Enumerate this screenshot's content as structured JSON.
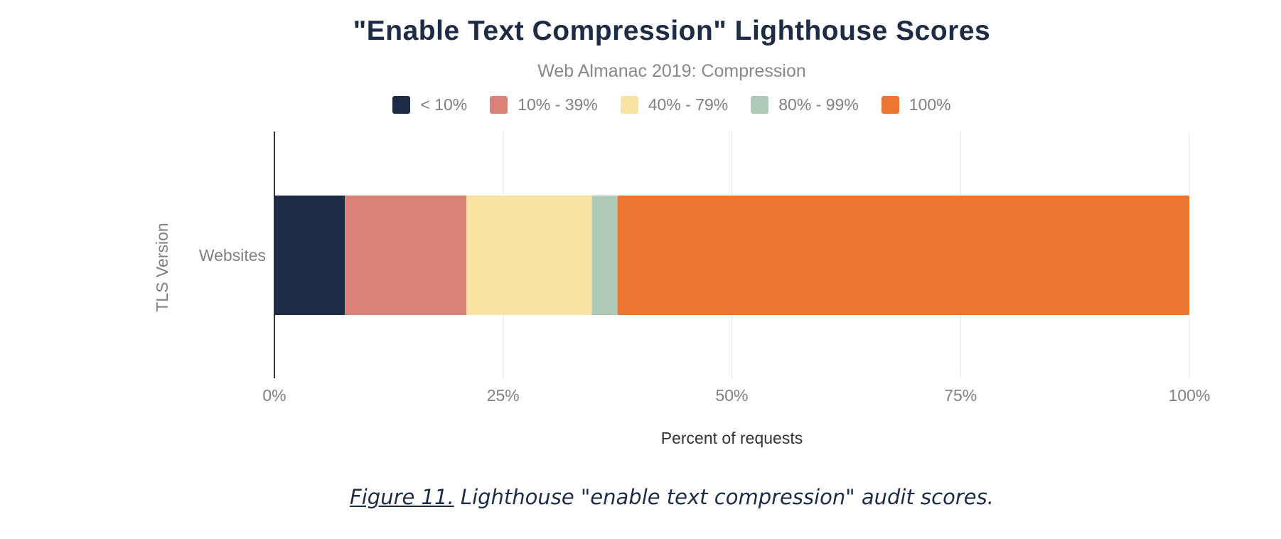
{
  "chart_data": {
    "type": "bar",
    "orientation": "horizontal",
    "stacked": true,
    "title": "\"Enable Text Compression\" Lighthouse Scores",
    "subtitle": "Web Almanac 2019: Compression",
    "xlabel": "Percent of requests",
    "ylabel": "TLS Version",
    "categories": [
      "Websites"
    ],
    "xlim": [
      0,
      100
    ],
    "x_ticks": [
      "0%",
      "25%",
      "50%",
      "75%",
      "100%"
    ],
    "grid": true,
    "legend_position": "top",
    "series": [
      {
        "name": "< 10%",
        "color": "#1e2b46",
        "values": [
          7.7
        ]
      },
      {
        "name": "10% - 39%",
        "color": "#db8278",
        "values": [
          13.3
        ]
      },
      {
        "name": "40% - 79%",
        "color": "#f8e3a3",
        "values": [
          13.7
        ]
      },
      {
        "name": "80% - 99%",
        "color": "#adc9b8",
        "values": [
          2.8
        ]
      },
      {
        "name": "100%",
        "color": "#ed7532",
        "values": [
          62.5
        ]
      }
    ]
  },
  "caption": {
    "figure_label": "Figure 11.",
    "text": " Lighthouse \"enable text compression\" audit scores."
  }
}
